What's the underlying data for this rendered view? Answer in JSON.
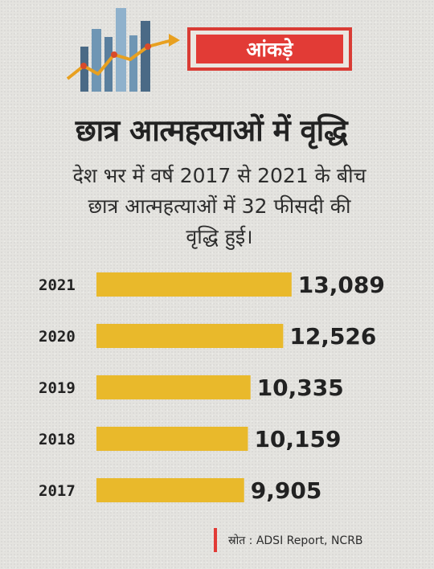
{
  "header": {
    "badge_label": "आंकड़े",
    "icon": "bar-chart-trend-icon"
  },
  "headline": "छात्र आत्महत्याओं में वृद्धि",
  "subtitle_lines": [
    "देश भर में वर्ष 2017 से 2021 के बीच",
    "छात्र आत्महत्याओं में 32 फीसदी की",
    "वृद्धि हुई।"
  ],
  "source_text": "स्रोत : ADSI Report, NCRB",
  "colors": {
    "bar": "#e9b92b",
    "accent": "#e23b36",
    "text": "#222222"
  },
  "chart_data": {
    "type": "bar",
    "orientation": "horizontal",
    "categories": [
      "2021",
      "2020",
      "2019",
      "2018",
      "2017"
    ],
    "values": [
      13089,
      12526,
      10335,
      10159,
      9905
    ],
    "value_labels": [
      "13,089",
      "12,526",
      "10,335",
      "10,159",
      "9,905"
    ],
    "title": "छात्र आत्महत्याओं में वृद्धि",
    "xlabel": "",
    "ylabel": "",
    "grid": false,
    "legend": "none"
  }
}
